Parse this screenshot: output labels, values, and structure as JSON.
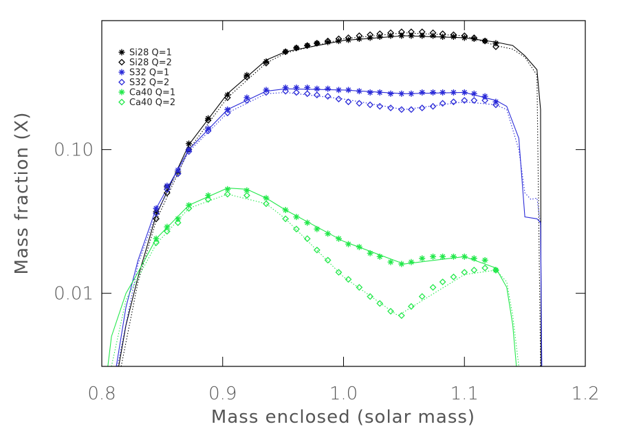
{
  "chart_data": {
    "type": "line",
    "x_label": "Mass enclosed (solar mass)",
    "y_label": "Mass fraction (X)",
    "log_y": true,
    "xlim": [
      0.8,
      1.2
    ],
    "xticks": [
      0.8,
      0.9,
      {
        "value": 1,
        "label": "1.0"
      },
      1.1,
      1.2
    ],
    "ylim": [
      0.0031,
      0.79
    ],
    "yticks": [
      0.01,
      {
        "value": 0.1,
        "label": "0.10"
      }
    ],
    "legend": "upper left",
    "marker_x": [
      0.845,
      0.854,
      0.863,
      0.872,
      0.888,
      0.904,
      0.92,
      0.936,
      0.952,
      0.961,
      0.97,
      0.978,
      0.987,
      0.996,
      1.004,
      1.013,
      1.022,
      1.03,
      1.039,
      1.048,
      1.056,
      1.065,
      1.074,
      1.082,
      1.091,
      1.1,
      1.108,
      1.117,
      1.126
    ],
    "series": [
      {
        "name": "Si28 Q=1",
        "color": "#000000",
        "marker": "star",
        "dash": "solid",
        "x": [
          0.814,
          0.82,
          0.83,
          0.845,
          0.872,
          0.904,
          0.936,
          0.952,
          1.0,
          1.05,
          1.1,
          1.126,
          1.14,
          1.15,
          1.16,
          1.163,
          1.1635
        ],
        "values": [
          0.0031,
          0.006,
          0.013,
          0.035,
          0.108,
          0.245,
          0.42,
          0.48,
          0.575,
          0.62,
          0.6,
          0.56,
          0.53,
          0.45,
          0.36,
          0.19,
          0.0031
        ],
        "marker_values": [
          0.037,
          0.055,
          0.07,
          0.11,
          0.165,
          0.24,
          0.33,
          0.41,
          0.48,
          0.51,
          0.53,
          0.55,
          0.56,
          0.57,
          0.58,
          0.59,
          0.6,
          0.61,
          0.62,
          0.62,
          0.62,
          0.62,
          0.62,
          0.61,
          0.61,
          0.6,
          0.59,
          0.57,
          0.55
        ]
      },
      {
        "name": "Si28 Q=2",
        "color": "#000000",
        "marker": "diamond",
        "dash": "dotted",
        "x": [
          0.816,
          0.83,
          0.845,
          0.872,
          0.904,
          0.936,
          0.952,
          1.0,
          1.05,
          1.1,
          1.126,
          1.14,
          1.15,
          1.16,
          1.163
        ],
        "values": [
          0.0031,
          0.012,
          0.032,
          0.1,
          0.23,
          0.4,
          0.47,
          0.59,
          0.65,
          0.62,
          0.53,
          0.5,
          0.44,
          0.33,
          0.0031
        ],
        "marker_values": [
          0.033,
          0.05,
          0.068,
          0.1,
          0.16,
          0.23,
          0.32,
          0.4,
          0.48,
          0.51,
          0.53,
          0.55,
          0.57,
          0.59,
          0.6,
          0.62,
          0.63,
          0.64,
          0.65,
          0.66,
          0.66,
          0.66,
          0.65,
          0.64,
          0.63,
          0.62,
          0.6,
          0.57,
          0.52
        ]
      },
      {
        "name": "S32 Q=1",
        "color": "#2a2ad8",
        "marker": "star",
        "dash": "solid",
        "x": [
          0.812,
          0.82,
          0.83,
          0.845,
          0.872,
          0.904,
          0.936,
          0.952,
          1.0,
          1.05,
          1.1,
          1.126,
          1.135,
          1.145,
          1.15,
          1.16,
          1.163,
          1.164
        ],
        "values": [
          0.0031,
          0.008,
          0.017,
          0.039,
          0.1,
          0.19,
          0.255,
          0.265,
          0.26,
          0.245,
          0.25,
          0.22,
          0.2,
          0.12,
          0.034,
          0.033,
          0.031,
          0.0031
        ],
        "marker_values": [
          0.039,
          0.056,
          0.072,
          0.1,
          0.14,
          0.19,
          0.23,
          0.26,
          0.27,
          0.27,
          0.27,
          0.265,
          0.265,
          0.26,
          0.26,
          0.255,
          0.25,
          0.25,
          0.245,
          0.245,
          0.245,
          0.25,
          0.25,
          0.25,
          0.25,
          0.25,
          0.245,
          0.235,
          0.215
        ]
      },
      {
        "name": "S32 Q=2",
        "color": "#2a2ad8",
        "marker": "diamond",
        "dash": "dotted",
        "x": [
          0.813,
          0.83,
          0.845,
          0.872,
          0.904,
          0.936,
          0.952,
          1.0,
          1.05,
          1.1,
          1.126,
          1.135,
          1.145,
          1.15,
          1.155,
          1.16,
          1.163,
          1.164
        ],
        "values": [
          0.0031,
          0.016,
          0.036,
          0.097,
          0.18,
          0.245,
          0.25,
          0.225,
          0.19,
          0.215,
          0.205,
          0.19,
          0.1,
          0.05,
          0.045,
          0.046,
          0.03,
          0.0031
        ],
        "marker_values": [
          0.036,
          0.053,
          0.068,
          0.097,
          0.135,
          0.18,
          0.22,
          0.25,
          0.255,
          0.25,
          0.245,
          0.24,
          0.235,
          0.225,
          0.215,
          0.21,
          0.205,
          0.2,
          0.195,
          0.19,
          0.19,
          0.195,
          0.2,
          0.21,
          0.215,
          0.22,
          0.22,
          0.22,
          0.205
        ]
      },
      {
        "name": "Ca40 Q=1",
        "color": "#22e84a",
        "marker": "star",
        "dash": "solid",
        "x": [
          0.805,
          0.808,
          0.82,
          0.83,
          0.845,
          0.872,
          0.904,
          0.92,
          0.936,
          0.952,
          1.0,
          1.05,
          1.1,
          1.126,
          1.135,
          1.14,
          1.143
        ],
        "values": [
          0.0031,
          0.005,
          0.01,
          0.014,
          0.024,
          0.041,
          0.054,
          0.053,
          0.046,
          0.038,
          0.023,
          0.016,
          0.018,
          0.015,
          0.011,
          0.006,
          0.0031
        ],
        "marker_values": [
          0.024,
          0.029,
          0.033,
          0.041,
          0.048,
          0.053,
          0.052,
          0.046,
          0.038,
          0.034,
          0.031,
          0.028,
          0.026,
          0.024,
          0.022,
          0.021,
          0.019,
          0.018,
          0.0165,
          0.016,
          0.0165,
          0.0175,
          0.018,
          0.018,
          0.018,
          0.018,
          0.0175,
          0.017,
          0.0145
        ]
      },
      {
        "name": "Ca40 Q=2",
        "color": "#22e84a",
        "marker": "diamond",
        "dash": "dotted",
        "x": [
          0.808,
          0.82,
          0.845,
          0.872,
          0.904,
          0.936,
          0.952,
          1.0,
          1.045,
          1.1,
          1.126,
          1.135,
          1.14,
          1.145
        ],
        "values": [
          0.0031,
          0.009,
          0.022,
          0.039,
          0.049,
          0.042,
          0.033,
          0.013,
          0.007,
          0.0135,
          0.0145,
          0.012,
          0.007,
          0.0031
        ],
        "marker_values": [
          0.0225,
          0.027,
          0.031,
          0.039,
          0.045,
          0.049,
          0.048,
          0.042,
          0.033,
          0.028,
          0.024,
          0.02,
          0.017,
          0.014,
          0.0125,
          0.011,
          0.0095,
          0.0085,
          0.0075,
          0.007,
          0.0081,
          0.0095,
          0.011,
          0.012,
          0.013,
          0.014,
          0.0145,
          0.015,
          0.0145
        ]
      }
    ]
  }
}
